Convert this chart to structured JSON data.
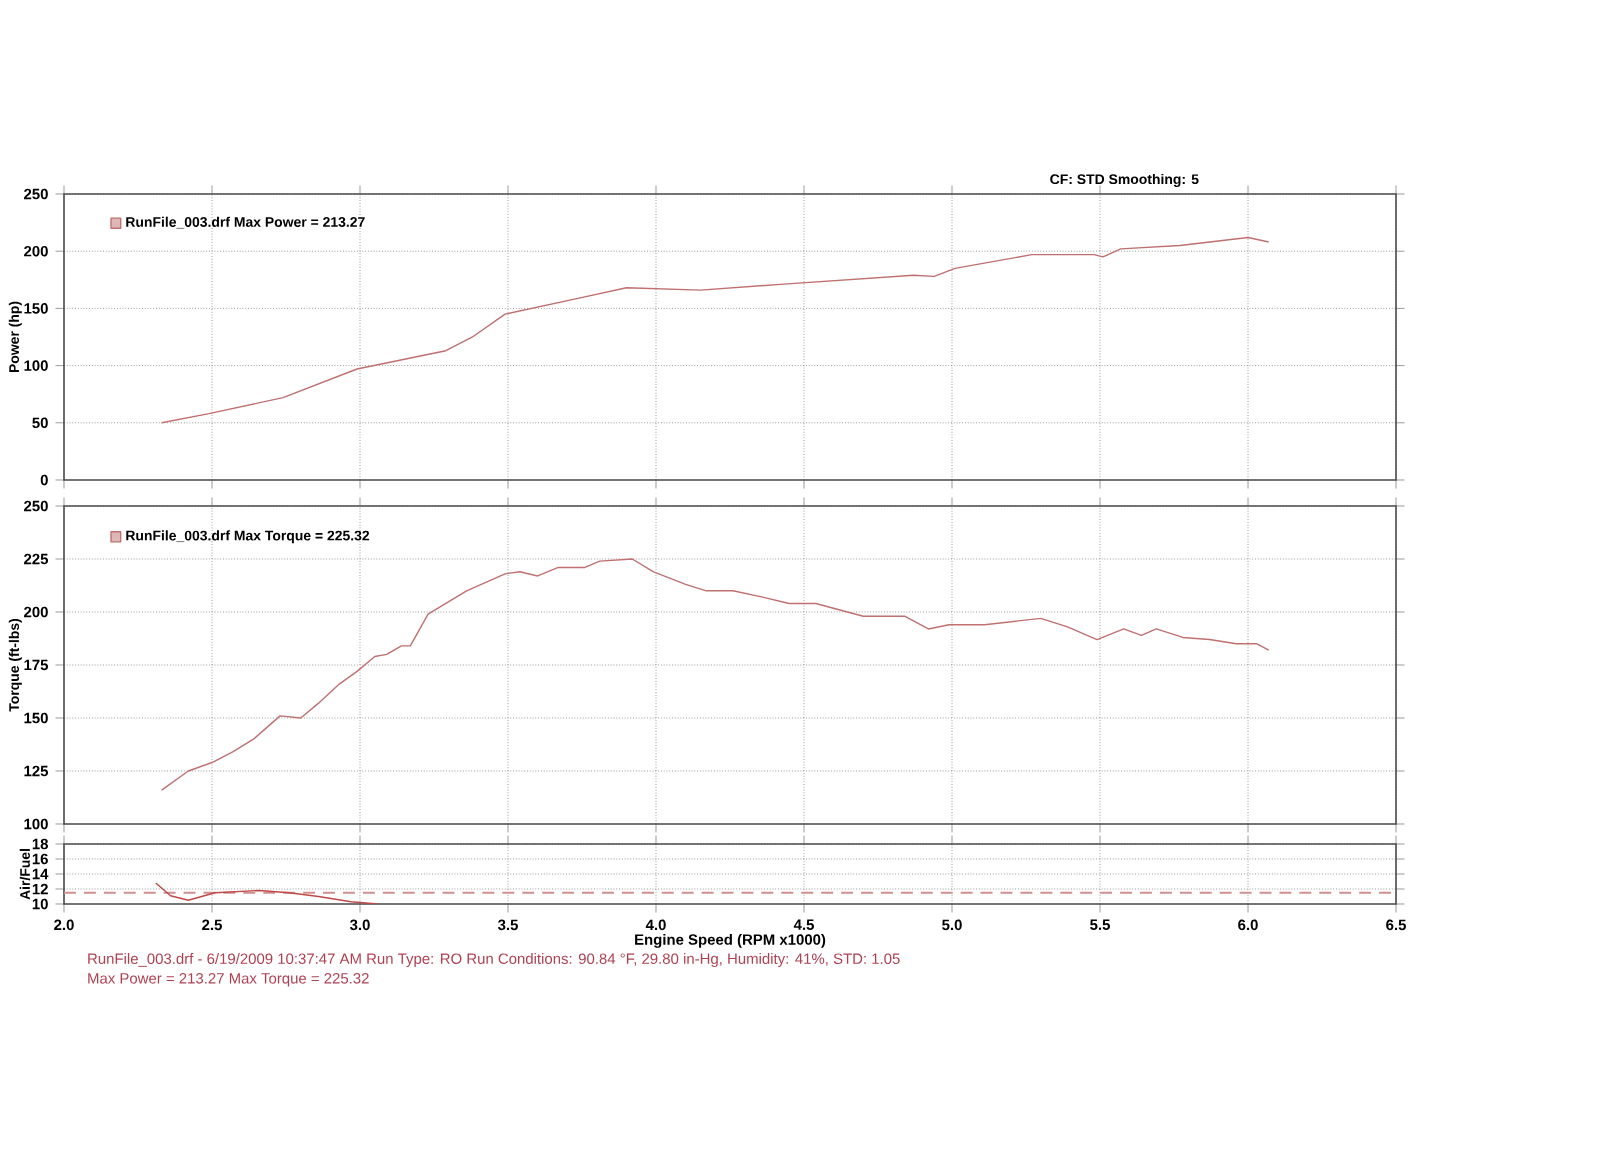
{
  "chart_data": [
    {
      "type": "line",
      "ylabel": "Power (hp)",
      "xlim": [
        2,
        6.5
      ],
      "ylim": [
        0,
        250
      ],
      "xticks": [
        2,
        2.5,
        3,
        3.5,
        4,
        4.5,
        5,
        5.5,
        6,
        6.5
      ],
      "yticks": [
        0,
        50,
        100,
        150,
        200,
        250
      ],
      "grid": true,
      "legend": "top left",
      "tick_labels": "y",
      "annotations": [
        "CF: STD  Smoothing: 5"
      ],
      "series": [
        {
          "name": "RunFile_003.drf Max Power = 213.27",
          "color": "#c07070",
          "x": [
            2.33,
            2.49,
            2.74,
            2.99,
            3.29,
            3.38,
            3.49,
            3.74,
            3.9,
            4.15,
            4.42,
            4.87,
            4.94,
            5.01,
            5.27,
            5.48,
            5.51,
            5.57,
            5.77,
            6.0,
            6.07
          ],
          "values": [
            50,
            58,
            72,
            97,
            113,
            125,
            145,
            159,
            168,
            166,
            171,
            179,
            178,
            185,
            197,
            197,
            195,
            202,
            205,
            212,
            208
          ]
        }
      ]
    },
    {
      "type": "line",
      "ylabel": "Torque (ft-lbs)",
      "xlim": [
        2,
        6.5
      ],
      "ylim": [
        100,
        250
      ],
      "xticks": [
        2,
        2.5,
        3,
        3.5,
        4,
        4.5,
        5,
        5.5,
        6,
        6.5
      ],
      "yticks": [
        100,
        125,
        150,
        175,
        200,
        225,
        250
      ],
      "grid": true,
      "legend": "top left",
      "tick_labels": "y",
      "series": [
        {
          "name": "RunFile_003.drf Max Torque = 225.32",
          "color": "#c07070",
          "x": [
            2.33,
            2.42,
            2.5,
            2.57,
            2.64,
            2.73,
            2.8,
            2.86,
            2.93,
            2.99,
            3.05,
            3.09,
            3.14,
            3.17,
            3.23,
            3.36,
            3.49,
            3.54,
            3.6,
            3.67,
            3.76,
            3.81,
            3.92,
            3.99,
            4.1,
            4.17,
            4.26,
            4.36,
            4.45,
            4.54,
            4.7,
            4.84,
            4.92,
            4.99,
            5.11,
            5.3,
            5.39,
            5.49,
            5.58,
            5.64,
            5.69,
            5.78,
            5.87,
            5.96,
            6.03,
            6.07
          ],
          "values": [
            116,
            125,
            129,
            134,
            140,
            151,
            150,
            157,
            166,
            172,
            179,
            180,
            184,
            184,
            199,
            210,
            218,
            219,
            217,
            221,
            221,
            224,
            225,
            219,
            213,
            210,
            210,
            207,
            204,
            204,
            198,
            198,
            192,
            194,
            194,
            197,
            193,
            187,
            192,
            189,
            192,
            188,
            187,
            185,
            185,
            182
          ]
        }
      ]
    },
    {
      "type": "line",
      "ylabel": "Air/Fuel",
      "xlabel": "Engine Speed (RPM x1000)",
      "xlim": [
        2,
        6.5
      ],
      "ylim": [
        10,
        18
      ],
      "xticks": [
        {
          "value": 2,
          "label": "2.0"
        },
        {
          "value": 2.5,
          "label": "2.5"
        },
        {
          "value": 3,
          "label": "3.0"
        },
        {
          "value": 3.5,
          "label": "3.5"
        },
        {
          "value": 4,
          "label": "4.0"
        },
        {
          "value": 4.5,
          "label": "4.5"
        },
        {
          "value": 5,
          "label": "5.0"
        },
        {
          "value": 5.5,
          "label": "5.5"
        },
        {
          "value": 6,
          "label": "6.0"
        },
        {
          "value": 6.5,
          "label": "6.5"
        }
      ],
      "yticks": [
        10,
        12,
        14,
        16,
        18
      ],
      "grid": true,
      "ref_lines": [
        {
          "axis": "y",
          "value": 11.5,
          "color": "#d09090",
          "line_style": "dashed"
        }
      ],
      "annotations": [
        "RunFile_003.drf - 6/19/2009 10:37:47 AM  Run Type: RO  Run Conditions: 90.84 °F, 29.80 in-Hg,  Humidity:  41%, STD: 1.05",
        "Max Power = 213.27  Max Torque = 225.32"
      ],
      "series": [
        {
          "color": "#c04848",
          "x": [
            2.31,
            2.36,
            2.42,
            2.51,
            2.66,
            2.76,
            2.86,
            2.97,
            3.06
          ],
          "values": [
            12.8,
            11.1,
            10.5,
            11.5,
            11.8,
            11.5,
            11,
            10.3,
            10
          ]
        }
      ]
    }
  ]
}
